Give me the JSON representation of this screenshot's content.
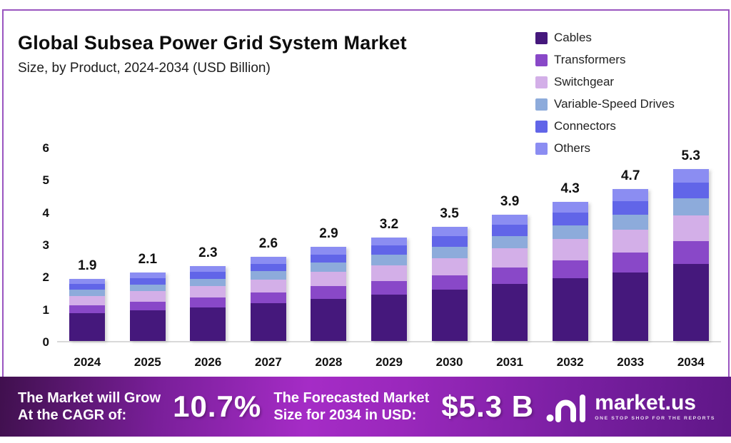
{
  "header": {
    "title": "Global Subsea Power Grid System Market",
    "subtitle": "Size, by Product, 2024-2034 (USD Billion)"
  },
  "legend": [
    {
      "label": "Cables",
      "color": "#45187c"
    },
    {
      "label": "Transformers",
      "color": "#8948c8"
    },
    {
      "label": "Switchgear",
      "color": "#d3afe8"
    },
    {
      "label": "Variable-Speed Drives",
      "color": "#8dabdb"
    },
    {
      "label": "Connectors",
      "color": "#6165e8"
    },
    {
      "label": "Others",
      "color": "#8b8df2"
    }
  ],
  "chart_data": {
    "type": "bar",
    "subtype": "stacked",
    "title": "Global Subsea Power Grid System Market",
    "subtitle": "Size, by Product, 2024-2034 (USD Billion)",
    "unit": "USD Billion",
    "categories": [
      "2024",
      "2025",
      "2026",
      "2027",
      "2028",
      "2029",
      "2030",
      "2031",
      "2032",
      "2033",
      "2034"
    ],
    "totals": [
      1.9,
      2.1,
      2.3,
      2.6,
      2.9,
      3.2,
      3.5,
      3.9,
      4.3,
      4.7,
      5.3
    ],
    "series": [
      {
        "name": "Cables",
        "color": "#45187c",
        "values": [
          0.86,
          0.95,
          1.04,
          1.17,
          1.31,
          1.44,
          1.58,
          1.76,
          1.94,
          2.12,
          2.39
        ]
      },
      {
        "name": "Transformers",
        "color": "#8948c8",
        "values": [
          0.25,
          0.27,
          0.3,
          0.34,
          0.38,
          0.42,
          0.46,
          0.51,
          0.56,
          0.61,
          0.69
        ]
      },
      {
        "name": "Switchgear",
        "color": "#d3afe8",
        "values": [
          0.29,
          0.32,
          0.35,
          0.39,
          0.44,
          0.48,
          0.53,
          0.59,
          0.65,
          0.71,
          0.8
        ]
      },
      {
        "name": "Variable-Speed Drives",
        "color": "#8dabdb",
        "values": [
          0.19,
          0.21,
          0.23,
          0.26,
          0.29,
          0.32,
          0.35,
          0.39,
          0.43,
          0.47,
          0.53
        ]
      },
      {
        "name": "Connectors",
        "color": "#6165e8",
        "values": [
          0.17,
          0.19,
          0.21,
          0.23,
          0.26,
          0.29,
          0.32,
          0.35,
          0.39,
          0.42,
          0.48
        ]
      },
      {
        "name": "Others",
        "color": "#8b8df2",
        "values": [
          0.15,
          0.17,
          0.18,
          0.21,
          0.23,
          0.26,
          0.28,
          0.31,
          0.34,
          0.38,
          0.42
        ]
      }
    ],
    "ylim": [
      0,
      6
    ],
    "yticks": [
      0,
      1,
      2,
      3,
      4,
      5,
      6
    ],
    "grid": false,
    "legend_position": "top-right"
  },
  "banner": {
    "cagr_label_line1": "The Market will Grow",
    "cagr_label_line2": "At the CAGR of:",
    "cagr_value": "10.7%",
    "forecast_label_line1": "The Forecasted Market",
    "forecast_label_line2": "Size for 2034 in USD:",
    "forecast_value": "$5.3 B",
    "logo": {
      "name": "market.us",
      "tagline": "ONE STOP SHOP FOR THE REPORTS"
    }
  },
  "colors": {
    "card_border": "#9a55c0",
    "baseline": "#d9d9d9",
    "banner_gradient_start": "#40104e",
    "banner_gradient_mid": "#a52cc6",
    "banner_gradient_end": "#5f1787"
  }
}
